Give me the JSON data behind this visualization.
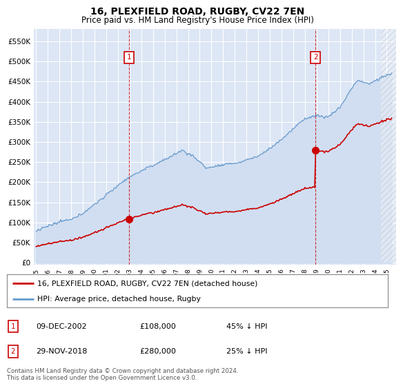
{
  "title": "16, PLEXFIELD ROAD, RUGBY, CV22 7EN",
  "subtitle": "Price paid vs. HM Land Registry's House Price Index (HPI)",
  "title_fontsize": 10,
  "subtitle_fontsize": 8.5,
  "yticks": [
    0,
    50000,
    100000,
    150000,
    200000,
    250000,
    300000,
    350000,
    400000,
    450000,
    500000,
    550000
  ],
  "ylim": [
    0,
    580000
  ],
  "xlim_start": 1994.8,
  "xlim_end": 2025.8,
  "bg_color": "#dce6f5",
  "grid_color": "#ffffff",
  "red_line_color": "#cc0000",
  "blue_line_color": "#6699cc",
  "blue_fill_color": "#dce6f5",
  "sale1_date": 2002.94,
  "sale1_price": 108000,
  "sale2_date": 2018.91,
  "sale2_price": 280000,
  "sale2_pre_price": 210000,
  "legend_line1": "16, PLEXFIELD ROAD, RUGBY, CV22 7EN (detached house)",
  "legend_line2": "HPI: Average price, detached house, Rugby",
  "sale1_display": "09-DEC-2002",
  "sale1_display_price": "£108,000",
  "sale1_hpi_text": "45% ↓ HPI",
  "sale2_display": "29-NOV-2018",
  "sale2_display_price": "£280,000",
  "sale2_hpi_text": "25% ↓ HPI",
  "footnote": "Contains HM Land Registry data © Crown copyright and database right 2024.\nThis data is licensed under the Open Government Licence v3.0."
}
